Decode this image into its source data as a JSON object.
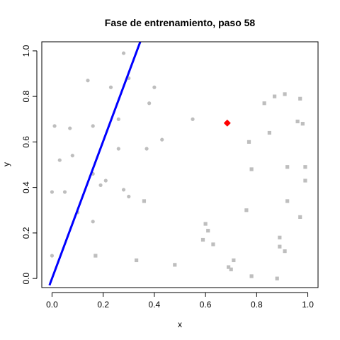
{
  "chart_data": {
    "type": "scatter",
    "title": "Fase de entrenamiento, paso 58",
    "xlabel": "x",
    "ylabel": "y",
    "xlim": [
      -0.04,
      1.04
    ],
    "ylim": [
      -0.04,
      1.04
    ],
    "x_ticks": [
      "0.0",
      "0.2",
      "0.4",
      "0.6",
      "0.8",
      "1.0"
    ],
    "y_ticks": [
      "0.0",
      "0.2",
      "0.4",
      "0.6",
      "0.8",
      "1.0"
    ],
    "grid": false,
    "colors": {
      "circles": "#bebebe",
      "squares": "#bebebe",
      "highlight": "#ff0000",
      "line": "#0000ff"
    },
    "series": [
      {
        "marker": "circle",
        "points": [
          [
            0.28,
            0.99
          ],
          [
            0.3,
            0.88
          ],
          [
            0.14,
            0.87
          ],
          [
            0.23,
            0.84
          ],
          [
            0.4,
            0.84
          ],
          [
            0.38,
            0.77
          ],
          [
            0.26,
            0.7
          ],
          [
            0.01,
            0.67
          ],
          [
            0.07,
            0.66
          ],
          [
            0.16,
            0.67
          ],
          [
            0.43,
            0.61
          ],
          [
            0.37,
            0.57
          ],
          [
            0.26,
            0.57
          ],
          [
            0.08,
            0.54
          ],
          [
            0.03,
            0.52
          ],
          [
            0.16,
            0.46
          ],
          [
            0.21,
            0.43
          ],
          [
            0.19,
            0.41
          ],
          [
            0.0,
            0.38
          ],
          [
            0.05,
            0.38
          ],
          [
            0.28,
            0.39
          ],
          [
            0.3,
            0.36
          ],
          [
            0.1,
            0.29
          ],
          [
            0.16,
            0.25
          ],
          [
            0.0,
            0.1
          ],
          [
            0.55,
            0.7
          ]
        ]
      },
      {
        "marker": "square",
        "points": [
          [
            0.87,
            0.8
          ],
          [
            0.91,
            0.81
          ],
          [
            0.97,
            0.79
          ],
          [
            0.83,
            0.77
          ],
          [
            0.96,
            0.69
          ],
          [
            0.98,
            0.68
          ],
          [
            0.85,
            0.64
          ],
          [
            0.77,
            0.6
          ],
          [
            0.78,
            0.48
          ],
          [
            0.92,
            0.49
          ],
          [
            0.99,
            0.49
          ],
          [
            0.99,
            0.43
          ],
          [
            0.92,
            0.34
          ],
          [
            0.76,
            0.3
          ],
          [
            0.97,
            0.27
          ],
          [
            0.6,
            0.24
          ],
          [
            0.61,
            0.21
          ],
          [
            0.59,
            0.17
          ],
          [
            0.63,
            0.15
          ],
          [
            0.89,
            0.18
          ],
          [
            0.89,
            0.14
          ],
          [
            0.91,
            0.12
          ],
          [
            0.71,
            0.08
          ],
          [
            0.69,
            0.05
          ],
          [
            0.7,
            0.04
          ],
          [
            0.78,
            0.01
          ],
          [
            0.88,
            0.0
          ],
          [
            0.48,
            0.06
          ],
          [
            0.33,
            0.08
          ],
          [
            0.17,
            0.1
          ],
          [
            0.36,
            0.34
          ]
        ]
      },
      {
        "marker": "diamond",
        "points": [
          [
            0.685,
            0.683
          ]
        ]
      }
    ],
    "line": {
      "x": [
        -0.01,
        0.345
      ],
      "y": [
        -0.03,
        1.04
      ]
    }
  }
}
